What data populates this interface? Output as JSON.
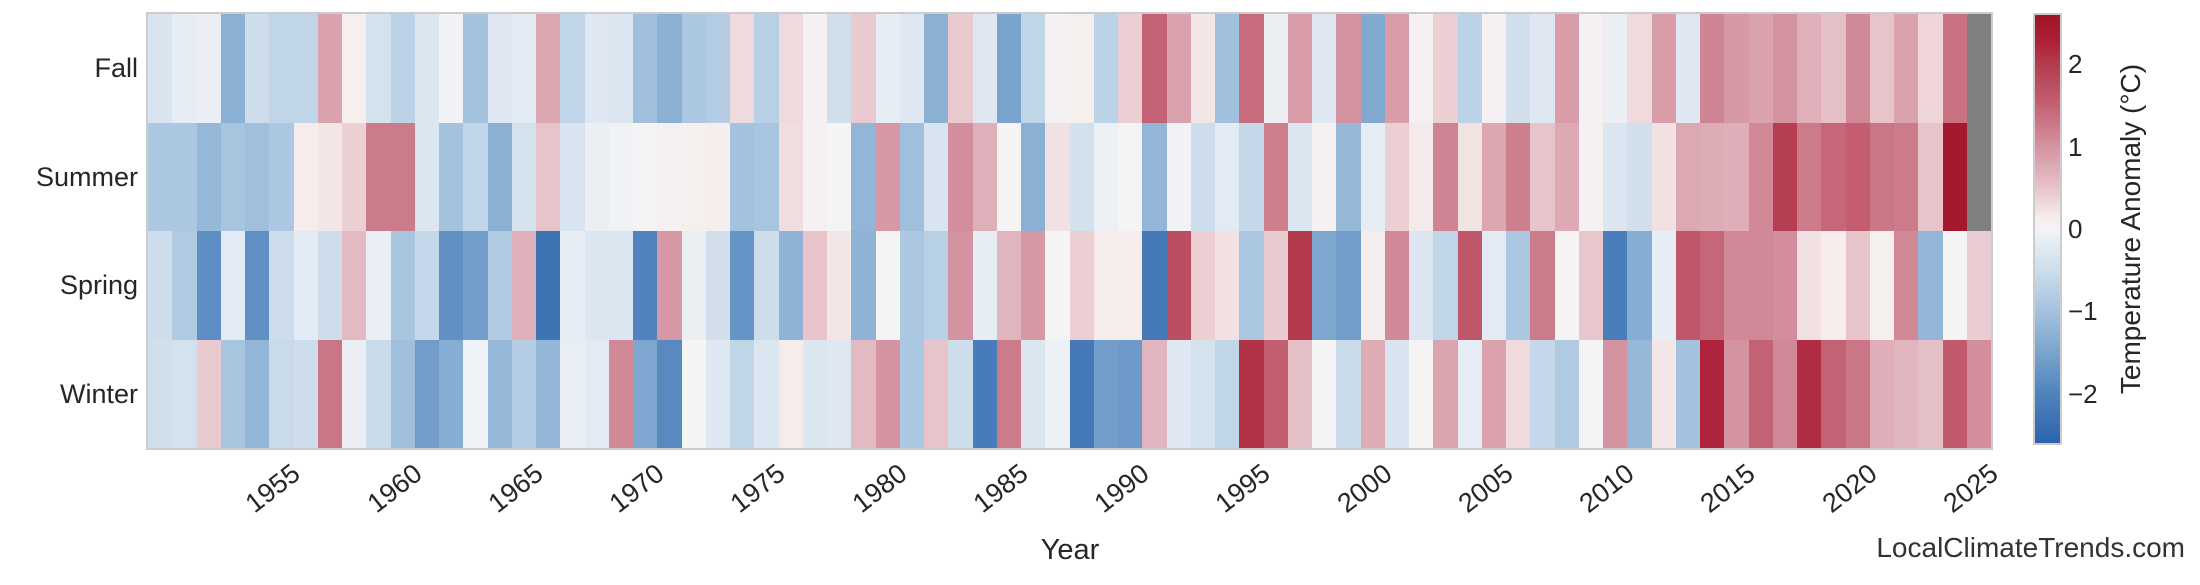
{
  "axes": {
    "x_label": "Year",
    "x_tick_labels": [
      "1955",
      "1960",
      "1965",
      "1970",
      "1975",
      "1980",
      "1985",
      "1990",
      "1995",
      "2000",
      "2005",
      "2010",
      "2015",
      "2020",
      "2025"
    ],
    "y_tick_labels": [
      "Fall",
      "Summer",
      "Spring",
      "Winter"
    ]
  },
  "colorbar": {
    "label": "Temperature Anomaly (°C)",
    "tick_labels": [
      "2",
      "1",
      "0",
      "−1",
      "−2"
    ],
    "tick_values": [
      2,
      1,
      0,
      -1,
      -2
    ],
    "vmin": -2.6,
    "vmax": 2.6,
    "gradient_anchors": [
      [
        -2.6,
        "#2c63ab"
      ],
      [
        -2.0,
        "#5083bd"
      ],
      [
        -1.5,
        "#7aa4ce"
      ],
      [
        -1.0,
        "#a3c2de"
      ],
      [
        -0.5,
        "#cdddec"
      ],
      [
        -0.15,
        "#e6edf4"
      ],
      [
        0.0,
        "#f5f4f5"
      ],
      [
        0.15,
        "#f5eceb"
      ],
      [
        0.5,
        "#e7c4ca"
      ],
      [
        1.0,
        "#d493a0"
      ],
      [
        1.5,
        "#c36274"
      ],
      [
        2.0,
        "#b43a4e"
      ],
      [
        2.3,
        "#ab2038"
      ],
      [
        2.6,
        "#9e1326"
      ]
    ]
  },
  "watermark": "LocalClimateTrends.com",
  "chart_data": {
    "type": "heatmap",
    "title": "",
    "xlabel": "Year",
    "unit": "°C",
    "missing_color": "#808080",
    "x": [
      1950,
      1951,
      1952,
      1953,
      1954,
      1955,
      1956,
      1957,
      1958,
      1959,
      1960,
      1961,
      1962,
      1963,
      1964,
      1965,
      1966,
      1967,
      1968,
      1969,
      1970,
      1971,
      1972,
      1973,
      1974,
      1975,
      1976,
      1977,
      1978,
      1979,
      1980,
      1981,
      1982,
      1983,
      1984,
      1985,
      1986,
      1987,
      1988,
      1989,
      1990,
      1991,
      1992,
      1993,
      1994,
      1995,
      1996,
      1997,
      1998,
      1999,
      2000,
      2001,
      2002,
      2003,
      2004,
      2005,
      2006,
      2007,
      2008,
      2009,
      2010,
      2011,
      2012,
      2013,
      2014,
      2015,
      2016,
      2017,
      2018,
      2019,
      2020,
      2021,
      2022,
      2023,
      2024,
      2025
    ],
    "rows": [
      "Fall",
      "Summer",
      "Spring",
      "Winter"
    ],
    "series": [
      {
        "name": "Fall",
        "values": [
          -0.35,
          -0.15,
          -0.1,
          -1.3,
          -0.5,
          -0.65,
          -0.65,
          0.85,
          0.1,
          -0.4,
          -0.7,
          -0.3,
          -0.05,
          -1.0,
          -0.25,
          -0.2,
          0.8,
          -0.65,
          -0.25,
          -0.3,
          -1.05,
          -1.3,
          -0.9,
          -0.8,
          0.3,
          -0.75,
          0.3,
          0.05,
          -0.45,
          0.45,
          -0.15,
          -0.25,
          -1.3,
          0.45,
          -0.25,
          -1.5,
          -0.65,
          0.05,
          0.1,
          -0.7,
          0.4,
          1.5,
          0.85,
          0.2,
          -1.05,
          1.4,
          -0.1,
          0.9,
          -0.25,
          1.0,
          -1.4,
          0.9,
          0.05,
          0.4,
          -0.7,
          0.05,
          -0.45,
          -0.25,
          0.9,
          0.05,
          -0.1,
          0.3,
          0.9,
          -0.25,
          1.15,
          0.95,
          0.85,
          1.0,
          0.7,
          0.55,
          1.1,
          0.5,
          0.85,
          0.35,
          1.35,
          null
        ]
      },
      {
        "name": "Summer",
        "values": [
          -0.9,
          -0.9,
          -1.15,
          -0.95,
          -1.05,
          -0.9,
          0.15,
          0.2,
          0.4,
          1.25,
          1.25,
          -0.3,
          -1.0,
          -0.65,
          -1.3,
          -0.4,
          0.5,
          -0.35,
          -0.1,
          -0.05,
          0.0,
          0.05,
          0.1,
          0.12,
          -1.0,
          -0.95,
          0.28,
          0.05,
          0.0,
          -1.2,
          0.95,
          -1.05,
          -0.35,
          1.05,
          0.7,
          0.0,
          -1.3,
          0.25,
          -0.42,
          -0.08,
          0.0,
          -1.2,
          -0.05,
          -0.5,
          -0.2,
          -0.6,
          1.2,
          -0.3,
          0.05,
          -1.15,
          -0.15,
          0.4,
          0.17,
          1.15,
          0.23,
          0.8,
          1.2,
          0.5,
          0.77,
          0.05,
          -0.3,
          -0.45,
          0.25,
          0.78,
          0.75,
          0.72,
          1.1,
          1.95,
          1.25,
          1.45,
          1.55,
          1.3,
          1.25,
          0.5,
          2.45,
          null
        ]
      },
      {
        "name": "Spring",
        "values": [
          -0.5,
          -0.85,
          -1.85,
          -0.2,
          -1.8,
          -0.5,
          -0.2,
          -0.5,
          0.6,
          -0.12,
          -0.95,
          -0.6,
          -1.8,
          -1.6,
          -0.85,
          0.7,
          -2.3,
          -0.15,
          -0.3,
          -0.3,
          -2.0,
          0.95,
          -0.1,
          -0.45,
          -1.75,
          -0.5,
          -1.25,
          0.5,
          0.2,
          -1.25,
          0.0,
          -0.9,
          -0.75,
          1.0,
          -0.15,
          0.65,
          0.95,
          0.0,
          0.4,
          0.15,
          0.15,
          -2.2,
          1.75,
          0.4,
          0.25,
          -0.9,
          0.45,
          2.0,
          -1.45,
          -1.6,
          0.12,
          1.1,
          -0.3,
          -0.65,
          1.65,
          -0.2,
          -0.9,
          1.25,
          0.02,
          0.48,
          -2.1,
          -1.35,
          -0.15,
          1.65,
          1.45,
          1.1,
          1.1,
          1.05,
          0.25,
          0.12,
          0.5,
          0.1,
          1.1,
          -1.2,
          0.0,
          0.42
        ]
      },
      {
        "name": "Winter",
        "values": [
          -0.45,
          -0.4,
          0.45,
          -0.95,
          -1.2,
          -0.55,
          -0.5,
          1.3,
          -0.1,
          -0.55,
          -1.05,
          -1.6,
          -1.35,
          -0.07,
          -1.15,
          -0.8,
          -1.2,
          -0.12,
          -0.2,
          1.1,
          -1.45,
          -1.9,
          0.0,
          -0.25,
          -0.65,
          -0.3,
          0.15,
          -0.3,
          -0.25,
          0.6,
          1.0,
          -0.9,
          0.5,
          -0.5,
          -2.15,
          1.25,
          -0.3,
          -0.08,
          -2.2,
          -1.6,
          -1.65,
          0.65,
          -0.25,
          -0.4,
          -0.65,
          2.1,
          1.55,
          0.55,
          0.0,
          -0.55,
          0.75,
          -0.35,
          0.0,
          0.82,
          -0.15,
          0.85,
          0.3,
          -0.6,
          -0.85,
          0.0,
          1.0,
          -1.15,
          0.2,
          -1.0,
          2.25,
          1.0,
          1.5,
          1.1,
          2.15,
          1.5,
          1.3,
          0.72,
          0.65,
          0.55,
          1.6,
          1.05
        ]
      }
    ]
  }
}
